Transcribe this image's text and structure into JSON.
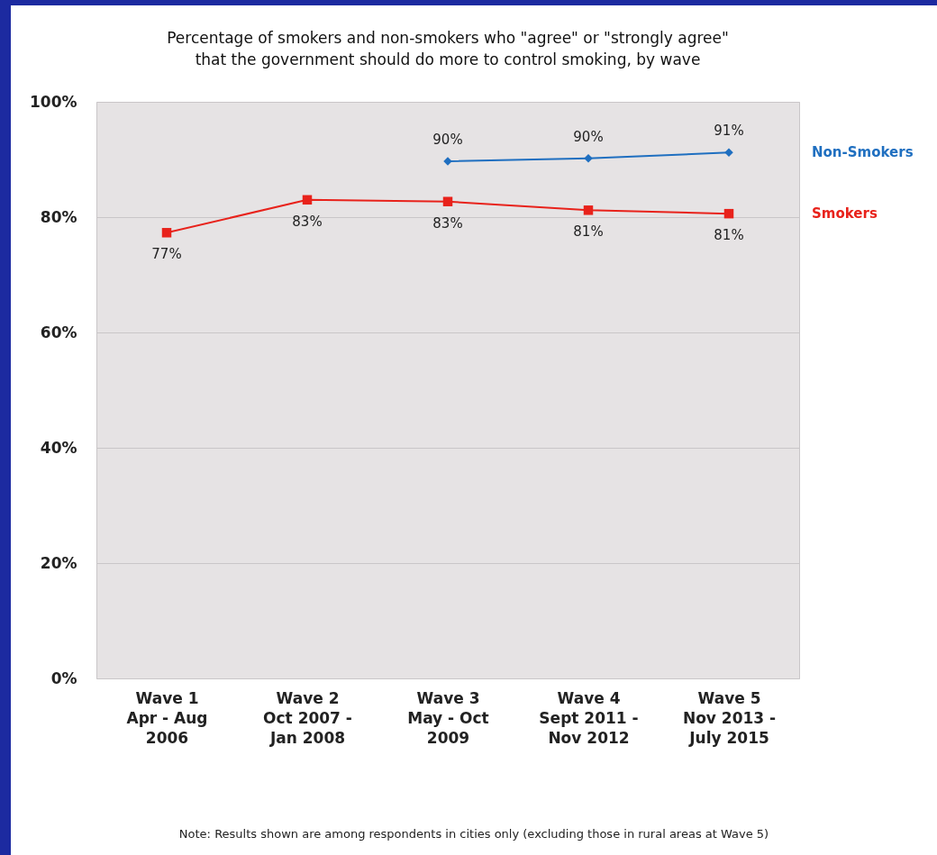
{
  "chart_data": {
    "type": "line",
    "title": "Percentage of smokers and non-smokers who \"agree\" or \"strongly agree\"\nthat the government should do more to control smoking, by wave",
    "categories": [
      "Wave 1\nApr - Aug\n2006",
      "Wave 2\nOct 2007 -\nJan 2008",
      "Wave 3\nMay - Oct\n2009",
      "Wave 4\nSept 2011 -\nNov 2012",
      "Wave 5\nNov 2013 -\nJuly 2015"
    ],
    "series": [
      {
        "name": "Non-Smokers",
        "color": "#1f6fc0",
        "marker": "diamond",
        "values": [
          null,
          null,
          89.7,
          90.2,
          91.2
        ],
        "value_labels": [
          null,
          null,
          "90%",
          "90%",
          "91%"
        ]
      },
      {
        "name": "Smokers",
        "color": "#e8221b",
        "marker": "square",
        "values": [
          77.3,
          83,
          82.7,
          81.2,
          80.6
        ],
        "value_labels": [
          "77%",
          "83%",
          "83%",
          "81%",
          "81%"
        ]
      }
    ],
    "ylim": [
      0,
      100
    ],
    "yticks": [
      {
        "value": 0,
        "label": "0%"
      },
      {
        "value": 20,
        "label": "20%"
      },
      {
        "value": 40,
        "label": "40%"
      },
      {
        "value": 60,
        "label": "60%"
      },
      {
        "value": 80,
        "label": "80%"
      },
      {
        "value": 100,
        "label": "100%"
      }
    ],
    "grid": "y",
    "legend": "right",
    "annotations": [
      "Note: Results shown are among respondents in cities only (excluding those in rural areas at Wave 5)"
    ]
  }
}
